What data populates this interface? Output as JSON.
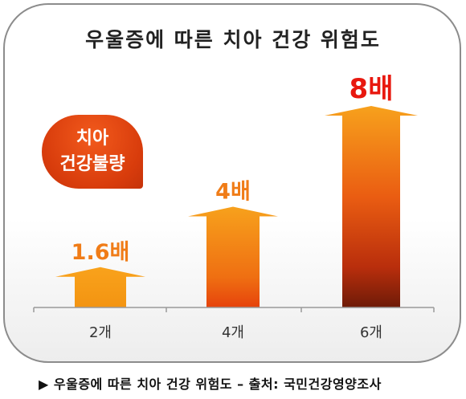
{
  "title": "우울증에 따른 치아 건강 위험도",
  "badge": {
    "line1": "치아",
    "line2": "건강불량"
  },
  "footer": "▶ 우울증에 따른 치아 건강 위험도 – 출처: 국민건강영양조사",
  "colors": {
    "label_orange": "#f07c17",
    "label_red": "#e8180f",
    "badge": "#d83c0c"
  },
  "chart_data": {
    "type": "bar",
    "categories": [
      "2개",
      "4개",
      "6개"
    ],
    "values": [
      1.6,
      4,
      8
    ],
    "data_labels": [
      "1.6배",
      "4배",
      "8배"
    ],
    "title": "우울증에 따른 치아 건강 위험도",
    "xlabel": "",
    "ylabel": "",
    "ylim": [
      0,
      8
    ],
    "grid": false,
    "legend": "none"
  }
}
